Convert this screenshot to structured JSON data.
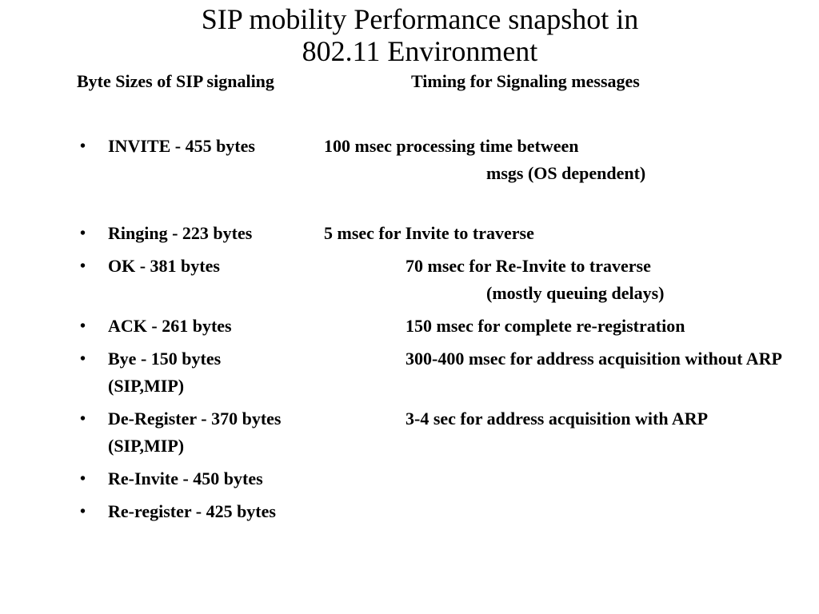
{
  "slide": {
    "title_line1": "SIP mobility Performance snapshot in",
    "title_line2": "802.11 Environment"
  },
  "headers": {
    "left": "Byte Sizes of SIP signaling",
    "right": "Timing for Signaling messages"
  },
  "bullet_char": "•",
  "rows": [
    {
      "left": "INVITE - 455 bytes",
      "right": "100 msec processing time between",
      "right_cont": "msgs (OS dependent)"
    },
    {
      "left": "Ringing - 223 bytes",
      "right": "5 msec for Invite to traverse"
    },
    {
      "left": "OK - 381 bytes",
      "right": "70 msec for Re-Invite to traverse",
      "right_cont": "(mostly queuing delays)"
    },
    {
      "left": "ACK - 261 bytes",
      "right": "150 msec for complete re-registration"
    },
    {
      "left": "Bye - 150 bytes",
      "right": "300-400 msec for address acquisition without ARP",
      "left_cont": "(SIP,MIP)"
    },
    {
      "left": "De-Register - 370 bytes",
      "right": "3-4 sec for address acquisition with ARP",
      "left_cont": "(SIP,MIP)"
    },
    {
      "left": "Re-Invite - 450 bytes"
    },
    {
      "left": "Re-register - 425 bytes"
    }
  ]
}
